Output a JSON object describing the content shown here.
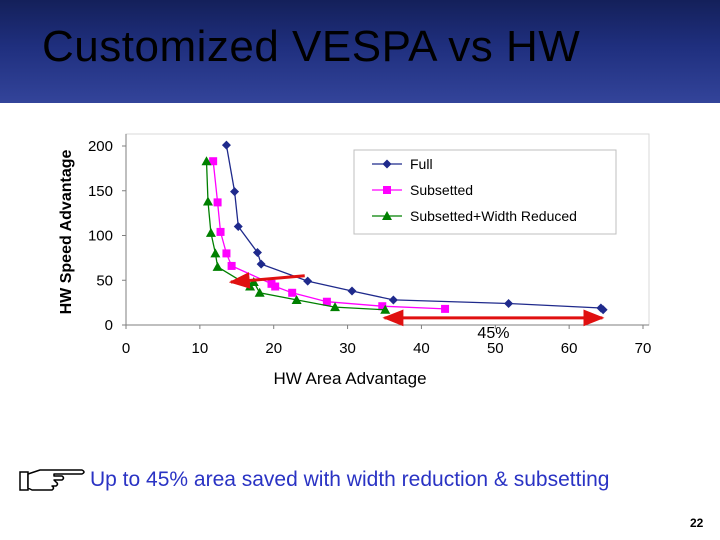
{
  "slide": {
    "title": "Customized VESPA vs HW",
    "caption": "Up to 45% area saved with width reduction & subsetting",
    "page_number": "22"
  },
  "chart_data": {
    "type": "line",
    "xlabel": "HW Area Advantage",
    "ylabel": "HW Speed Advantage",
    "xlim": [
      0,
      70
    ],
    "ylim": [
      0,
      200
    ],
    "xticks": [
      "0",
      "10",
      "20",
      "30",
      "40",
      "50",
      "60",
      "70"
    ],
    "yticks": [
      "0",
      "50",
      "100",
      "150",
      "200"
    ],
    "grid": false,
    "legend_position": "top-right",
    "series": [
      {
        "name": "Full",
        "color": "#1f2a8c",
        "marker": "diamond",
        "points": [
          [
            13.6,
            201
          ],
          [
            14.7,
            149
          ],
          [
            15.2,
            110
          ],
          [
            17.8,
            81
          ],
          [
            18.3,
            68
          ],
          [
            24.6,
            49
          ],
          [
            30.6,
            38
          ],
          [
            36.2,
            28
          ],
          [
            51.8,
            24
          ],
          [
            64.3,
            19
          ],
          [
            64.6,
            17
          ]
        ]
      },
      {
        "name": "Subsetted",
        "color": "#ff00ff",
        "marker": "square",
        "points": [
          [
            11.8,
            183
          ],
          [
            12.4,
            137
          ],
          [
            12.8,
            104
          ],
          [
            13.6,
            80
          ],
          [
            14.3,
            66
          ],
          [
            19.7,
            46
          ],
          [
            20.2,
            43
          ],
          [
            22.5,
            36
          ],
          [
            27.2,
            26
          ],
          [
            34.7,
            21
          ],
          [
            43.2,
            18
          ]
        ]
      },
      {
        "name": "Subsetted+Width Reduced",
        "color": "#008000",
        "marker": "triangle",
        "points": [
          [
            10.9,
            183
          ],
          [
            11.1,
            138
          ],
          [
            11.5,
            103
          ],
          [
            12.1,
            80
          ],
          [
            12.4,
            65
          ],
          [
            16.8,
            43
          ],
          [
            17.3,
            48
          ],
          [
            18.1,
            36
          ],
          [
            23.1,
            28
          ],
          [
            28.3,
            20
          ],
          [
            35.1,
            17
          ]
        ]
      }
    ],
    "annotations": [
      {
        "type": "double-arrow",
        "color": "#e01010",
        "from": [
          35,
          8
        ],
        "to": [
          64.5,
          8
        ],
        "label": "45%"
      },
      {
        "type": "arrow",
        "color": "#e01010",
        "from": [
          24.2,
          55
        ],
        "to": [
          14.2,
          48
        ]
      }
    ]
  }
}
